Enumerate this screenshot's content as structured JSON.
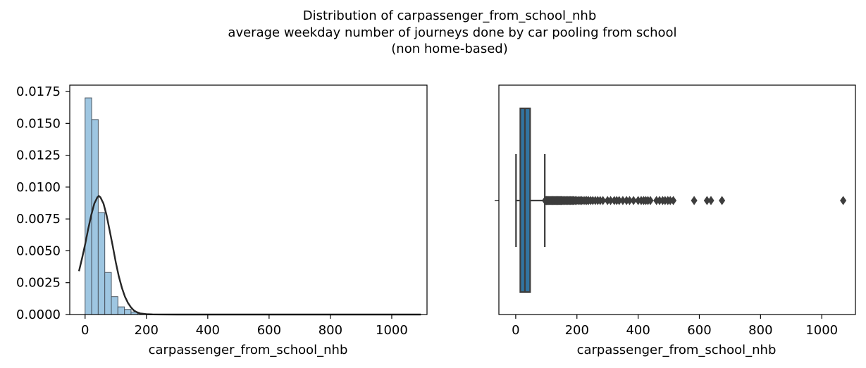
{
  "figure": {
    "title_lines": [
      "Distribution of carpassenger_from_school_nhb",
      "average weekday number of journeys done by car pooling from school",
      "(non home-based)"
    ]
  },
  "chart_data": [
    {
      "type": "histogram",
      "xlabel": "carpassenger_from_school_nhb",
      "ylabel": "",
      "xlim": [
        -50,
        1115
      ],
      "ylim": [
        0,
        0.018
      ],
      "xticks": [
        0,
        200,
        400,
        600,
        800,
        1000
      ],
      "yticks": [
        0.0,
        0.0025,
        0.005,
        0.0075,
        0.01,
        0.0125,
        0.015,
        0.0175
      ],
      "ytick_labels": [
        "0.0000",
        "0.0025",
        "0.0050",
        "0.0075",
        "0.0100",
        "0.0125",
        "0.0150",
        "0.0175"
      ],
      "grid": false,
      "bin_width": 21.4,
      "bins_start": 0,
      "bar_color": "#9ec6e1",
      "bar_edge_color": "#4a5560",
      "values": [
        0.017,
        0.0153,
        0.008,
        0.0033,
        0.0014,
        0.0006,
        0.0004,
        0.0002,
        8e-05,
        4e-05,
        3e-05,
        2e-05,
        2e-05,
        1e-05,
        1e-05,
        1e-05,
        1e-05,
        5e-06,
        5e-06,
        5e-06,
        5e-06,
        5e-06,
        5e-06,
        3e-06,
        3e-06,
        3e-06,
        3e-06,
        2e-06,
        2e-06,
        2e-06,
        2e-06,
        2e-06,
        1e-06,
        1e-06,
        1e-06,
        1e-06,
        1e-06,
        1e-06,
        1e-06,
        1e-06,
        1e-06,
        1e-06,
        1e-06,
        1e-06,
        1e-06,
        1e-06,
        1e-06,
        1e-06,
        1e-06,
        1e-06
      ],
      "kde": {
        "color": "#262626",
        "x": [
          -20,
          -10,
          0,
          10,
          20,
          30,
          40,
          45,
          50,
          60,
          70,
          80,
          90,
          100,
          110,
          120,
          130,
          140,
          150,
          160,
          170,
          180,
          200,
          220,
          250,
          300,
          400,
          600,
          800,
          1000,
          1095
        ],
        "y": [
          0.0034,
          0.0044,
          0.0055,
          0.0067,
          0.0078,
          0.0087,
          0.0092,
          0.0093,
          0.0092,
          0.0087,
          0.0078,
          0.0066,
          0.0054,
          0.0041,
          0.003,
          0.0021,
          0.0014,
          0.0009,
          0.00055,
          0.0003,
          0.00017,
          9e-05,
          3e-05,
          1e-05,
          3e-06,
          1e-06,
          5e-07,
          3e-07,
          2e-07,
          1e-07,
          1e-07
        ]
      }
    },
    {
      "type": "box",
      "xlabel": "carpassenger_from_school_nhb",
      "ylabel": "",
      "xlim": [
        -55,
        1110
      ],
      "xticks": [
        0,
        200,
        400,
        600,
        800,
        1000
      ],
      "grid": false,
      "box_color": "#3274a1",
      "line_color": "#3d3d3d",
      "whisker_low": 1,
      "q1": 15,
      "median": 30,
      "q3": 47,
      "whisker_high": 95,
      "outliers": [
        96,
        98,
        100,
        101,
        103,
        105,
        106,
        108,
        110,
        112,
        114,
        116,
        118,
        120,
        122,
        124,
        126,
        128,
        130,
        132,
        134,
        136,
        138,
        140,
        142,
        144,
        146,
        148,
        150,
        152,
        155,
        158,
        161,
        164,
        167,
        170,
        173,
        176,
        179,
        182,
        185,
        188,
        191,
        195,
        200,
        205,
        210,
        215,
        220,
        226,
        232,
        238,
        245,
        252,
        260,
        268,
        276,
        285,
        300,
        310,
        322,
        330,
        338,
        350,
        362,
        372,
        385,
        400,
        410,
        418,
        425,
        432,
        440,
        460,
        470,
        480,
        488,
        497,
        505,
        515,
        583,
        625,
        638,
        674,
        1070
      ]
    }
  ]
}
